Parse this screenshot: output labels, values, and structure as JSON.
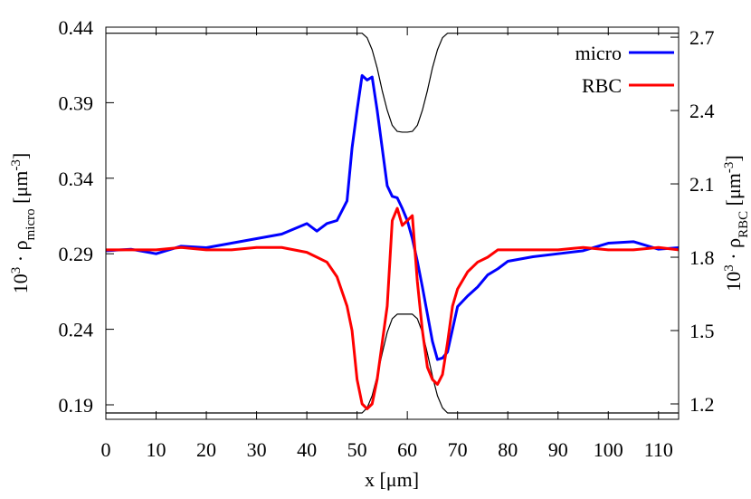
{
  "chart_data": {
    "type": "line",
    "xlabel": "x [μm]",
    "ylabel": [
      "10",
      "3",
      " · ρ",
      "micro",
      " [μm",
      "-3",
      "]"
    ],
    "y2label": [
      "10",
      "3",
      " · ρ",
      "RBC",
      " [μm",
      "-3",
      "]"
    ],
    "x": [
      0,
      5,
      10,
      15,
      20,
      25,
      30,
      35,
      40,
      42,
      44,
      46,
      48,
      49,
      50,
      51,
      52,
      53,
      54,
      55,
      56,
      57,
      58,
      59,
      60,
      61,
      62,
      63,
      64,
      65,
      66,
      67,
      68,
      69,
      70,
      72,
      74,
      76,
      78,
      80,
      85,
      90,
      95,
      100,
      105,
      110,
      114
    ],
    "series": [
      {
        "color": "#000000",
        "values": [
          0.436,
          0.436,
          0.436,
          0.436,
          0.436,
          0.436,
          0.436,
          0.436,
          0.436,
          0.436,
          0.436,
          0.436,
          0.436,
          0.436,
          0.436,
          0.436,
          0.433,
          0.425,
          0.413,
          0.398,
          0.385,
          0.375,
          0.371,
          0.3705,
          0.3705,
          0.371,
          0.375,
          0.385,
          0.398,
          0.413,
          0.425,
          0.433,
          0.436,
          0.436,
          0.436,
          0.436,
          0.436,
          0.436,
          0.436,
          0.436,
          0.436,
          0.436,
          0.436,
          0.436,
          0.436,
          0.436,
          0.436
        ]
      },
      {
        "color": "#000000",
        "values": [
          0.1846,
          0.1846,
          0.1846,
          0.1846,
          0.1846,
          0.1846,
          0.1846,
          0.1846,
          0.1846,
          0.1846,
          0.1846,
          0.1846,
          0.1846,
          0.1846,
          0.1846,
          0.1846,
          0.188,
          0.196,
          0.209,
          0.224,
          0.238,
          0.247,
          0.25,
          0.25,
          0.25,
          0.25,
          0.247,
          0.238,
          0.224,
          0.209,
          0.196,
          0.188,
          0.1846,
          0.1846,
          0.1846,
          0.1846,
          0.1846,
          0.1846,
          0.1846,
          0.1846,
          0.1846,
          0.1846,
          0.1846,
          0.1846,
          0.1846,
          0.1846,
          0.1846
        ]
      },
      {
        "name": "micro",
        "color": "#0000ff",
        "values": [
          0.292,
          0.293,
          0.29,
          0.295,
          0.294,
          0.297,
          0.3,
          0.303,
          0.31,
          0.305,
          0.31,
          0.312,
          0.325,
          0.36,
          0.385,
          0.408,
          0.405,
          0.407,
          0.385,
          0.36,
          0.335,
          0.328,
          0.327,
          0.32,
          0.312,
          0.3,
          0.285,
          0.268,
          0.25,
          0.232,
          0.22,
          0.221,
          0.225,
          0.24,
          0.255,
          0.262,
          0.268,
          0.276,
          0.28,
          0.285,
          0.288,
          0.29,
          0.292,
          0.297,
          0.298,
          0.293,
          0.294
        ]
      },
      {
        "name": "RBC",
        "color": "#ff0000",
        "axis": "y2",
        "values": [
          1.83,
          1.83,
          1.83,
          1.84,
          1.83,
          1.83,
          1.84,
          1.84,
          1.82,
          1.8,
          1.78,
          1.72,
          1.6,
          1.5,
          1.3,
          1.2,
          1.18,
          1.2,
          1.3,
          1.45,
          1.6,
          1.95,
          2.0,
          1.93,
          1.95,
          1.97,
          1.7,
          1.5,
          1.35,
          1.3,
          1.28,
          1.32,
          1.45,
          1.6,
          1.67,
          1.74,
          1.78,
          1.8,
          1.83,
          1.83,
          1.83,
          1.83,
          1.84,
          1.83,
          1.83,
          1.84,
          1.83
        ]
      }
    ],
    "xlim": [
      0,
      114
    ],
    "xticks": [
      0,
      10,
      20,
      30,
      40,
      50,
      60,
      70,
      80,
      90,
      100,
      110
    ],
    "ylim": [
      0.1804,
      0.44
    ],
    "yticks": [
      0.19,
      0.24,
      0.29,
      0.34,
      0.39,
      0.44
    ],
    "y2lim": [
      1.137,
      2.741
    ],
    "y2ticks": [
      1.2,
      1.5,
      1.8,
      2.1,
      2.4,
      2.7
    ],
    "legend": "upper right"
  }
}
